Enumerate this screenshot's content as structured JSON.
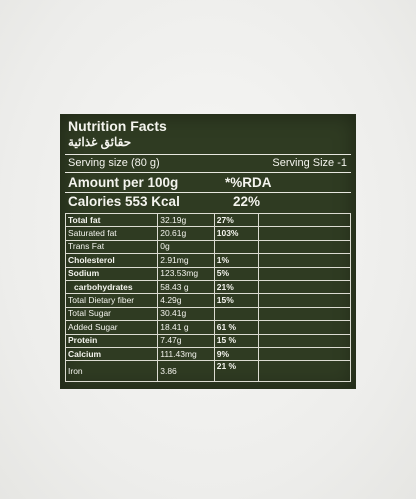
{
  "label": {
    "title": "Nutrition Facts",
    "title_arabic": "حقائق غذائية",
    "serving_left": "Serving size (80 g)",
    "serving_right": "Serving Size -1",
    "amount_header": "Amount per 100g",
    "rda_header": "*%RDA",
    "calories_label": "Calories 553 Kcal",
    "calories_rda": "22%",
    "rows": [
      {
        "name": "Total fat",
        "amount": "32.19g",
        "rda": "27%"
      },
      {
        "name": "Saturated fat",
        "amount": "20.61g",
        "rda": "103%"
      },
      {
        "name": "Trans Fat",
        "amount": "0g",
        "rda": ""
      },
      {
        "name": "Cholesterol",
        "amount": "2.91mg",
        "rda": "1%"
      },
      {
        "name": "Sodium",
        "amount": "123.53mg",
        "rda": "5%"
      },
      {
        "name": "carbohydrates",
        "amount": "58.43 g",
        "rda": "21%"
      },
      {
        "name": "Total Dietary fiber",
        "amount": "4.29g",
        "rda": "15%"
      },
      {
        "name": "Total Sugar",
        "amount": "30.41g",
        "rda": ""
      },
      {
        "name": "Added Sugar",
        "amount": "18.41 g",
        "rda": "61 %"
      },
      {
        "name": "Protein",
        "amount": "7.47g",
        "rda": "15 %"
      },
      {
        "name": "Calcium",
        "amount": "111.43mg",
        "rda": "9%"
      },
      {
        "name": "Iron",
        "amount": "3.86",
        "rda": "21 %"
      }
    ]
  }
}
